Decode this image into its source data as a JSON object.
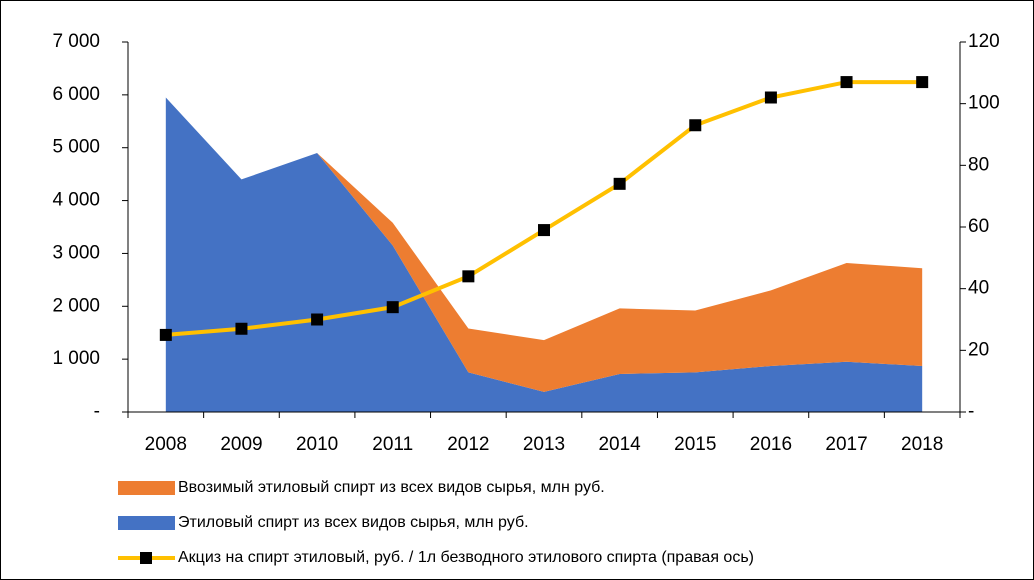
{
  "chart_data": {
    "type": "stacked_area_line",
    "categories": [
      "2008",
      "2009",
      "2010",
      "2011",
      "2012",
      "2013",
      "2014",
      "2015",
      "2016",
      "2017",
      "2018"
    ],
    "series": [
      {
        "name": "Ввозимый этиловый спирт из всех видов сырья, млн руб.",
        "color": "#ed7d31",
        "stack": "area",
        "values": [
          0,
          0,
          0,
          430,
          830,
          980,
          1240,
          1170,
          1430,
          1870,
          1850
        ]
      },
      {
        "name": "Этиловый спирт из всех видов сырья, млн руб.",
        "color": "#4472c4",
        "stack": "area",
        "values": [
          5950,
          4400,
          4900,
          3150,
          750,
          380,
          720,
          750,
          870,
          950,
          870
        ]
      },
      {
        "name": "Акциз на спирт этиловый, руб. / 1л безводного этилового спирта (правая ось)",
        "color": "#ffc000",
        "axis": "y2",
        "marker_color": "#000000",
        "values": [
          25,
          27,
          30,
          34,
          44,
          59,
          74,
          93,
          102,
          107,
          107
        ]
      }
    ],
    "ylim": [
      0,
      7000
    ],
    "yticks": [
      {
        "value": 0,
        "label": "-"
      },
      {
        "value": 1000,
        "label": "1 000"
      },
      {
        "value": 2000,
        "label": "2 000"
      },
      {
        "value": 3000,
        "label": "3 000"
      },
      {
        "value": 4000,
        "label": "4 000"
      },
      {
        "value": 5000,
        "label": "5 000"
      },
      {
        "value": 6000,
        "label": "6 000"
      },
      {
        "value": 7000,
        "label": "7 000"
      }
    ],
    "y2lim": [
      0,
      120
    ],
    "y2ticks": [
      {
        "value": 0,
        "label": "-"
      },
      20,
      40,
      60,
      80,
      100,
      120
    ],
    "legend": "bottom"
  }
}
